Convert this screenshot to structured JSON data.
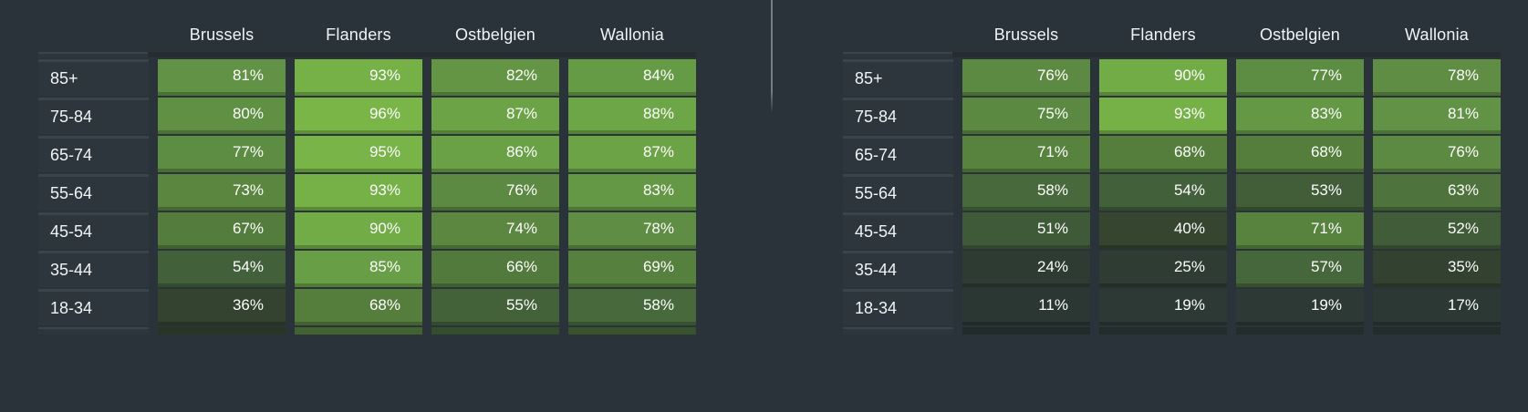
{
  "style": {
    "page_background": "#2a333a",
    "column_cap_color": "#262c31",
    "row_label_background": "#2d363d",
    "row_label_border_color": "#3a444c",
    "header_text_color": "#f1f4f5",
    "cell_text_color": "#fdfefd",
    "divider_color": "#757c82",
    "stub_darken_factor": 0.78,
    "heat_scale_anchors": [
      {
        "value": 0,
        "color": "#283430"
      },
      {
        "value": 20,
        "color": "#2c3934"
      },
      {
        "value": 40,
        "color": "#35452f"
      },
      {
        "value": 54,
        "color": "#42603a"
      },
      {
        "value": 68,
        "color": "#557e3d"
      },
      {
        "value": 81,
        "color": "#619245"
      },
      {
        "value": 90,
        "color": "#71ac46"
      },
      {
        "value": 100,
        "color": "#7fbc48"
      }
    ]
  },
  "chart_data": [
    {
      "type": "heatmap",
      "id": "left",
      "columns": [
        "Brussels",
        "Flanders",
        "Ostbelgien",
        "Wallonia"
      ],
      "rows": [
        "85+",
        "75-84",
        "65-74",
        "55-64",
        "45-54",
        "35-44",
        "18-34"
      ],
      "values": [
        [
          81,
          93,
          82,
          84
        ],
        [
          80,
          96,
          87,
          88
        ],
        [
          77,
          95,
          86,
          87
        ],
        [
          73,
          93,
          76,
          83
        ],
        [
          67,
          90,
          74,
          78
        ],
        [
          54,
          85,
          66,
          69
        ],
        [
          36,
          68,
          55,
          58
        ]
      ],
      "value_format": "percent",
      "legend": "none",
      "color_low_to_high": [
        "#283430",
        "#7fbc48"
      ]
    },
    {
      "type": "heatmap",
      "id": "right",
      "columns": [
        "Brussels",
        "Flanders",
        "Ostbelgien",
        "Wallonia"
      ],
      "rows": [
        "85+",
        "75-84",
        "65-74",
        "55-64",
        "45-54",
        "35-44",
        "18-34"
      ],
      "values": [
        [
          76,
          90,
          77,
          78
        ],
        [
          75,
          93,
          83,
          81
        ],
        [
          71,
          68,
          68,
          76
        ],
        [
          58,
          54,
          53,
          63
        ],
        [
          51,
          40,
          71,
          52
        ],
        [
          24,
          25,
          57,
          35
        ],
        [
          11,
          19,
          19,
          17
        ]
      ],
      "value_format": "percent",
      "legend": "none",
      "color_low_to_high": [
        "#283430",
        "#7fbc48"
      ]
    }
  ]
}
